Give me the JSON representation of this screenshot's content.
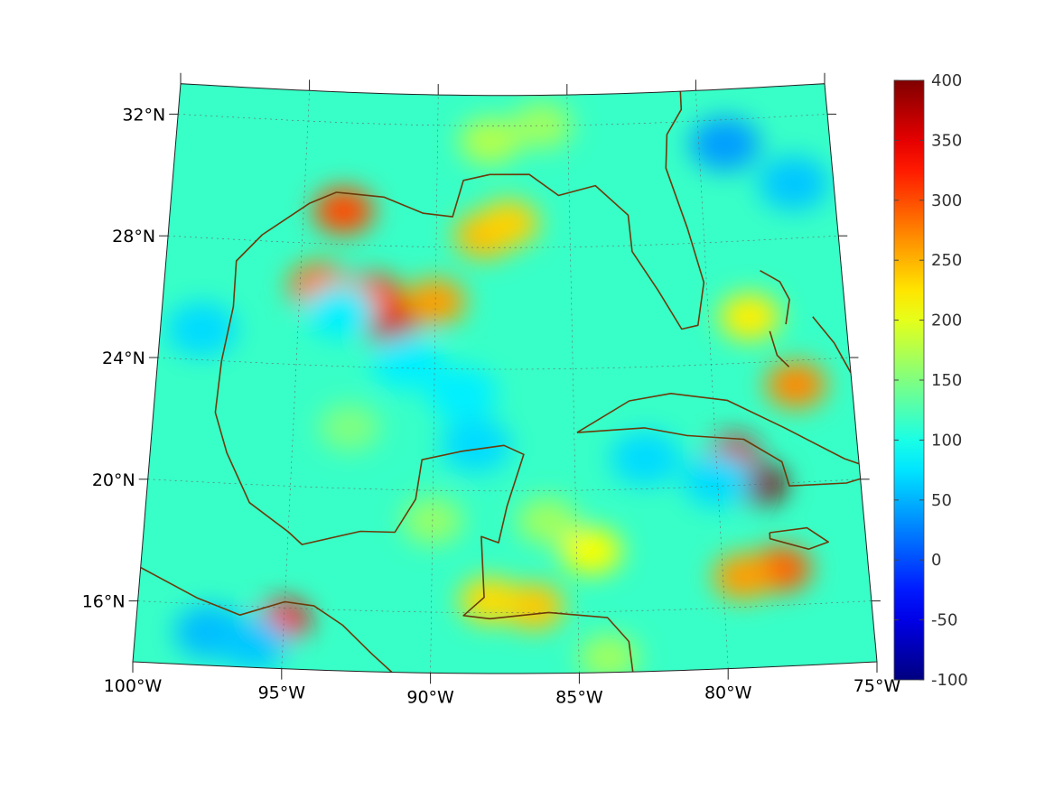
{
  "map": {
    "colormap": "jet",
    "base_value": 115,
    "lat_labels": [
      {
        "lat": 32,
        "text": "32°N"
      },
      {
        "lat": 28,
        "text": "28°N"
      },
      {
        "lat": 24,
        "text": "24°N"
      },
      {
        "lat": 20,
        "text": "20°N"
      },
      {
        "lat": 16,
        "text": "16°N"
      }
    ],
    "lon_labels": [
      {
        "lon": -100,
        "text": "100°W"
      },
      {
        "lon": -95,
        "text": "95°W"
      },
      {
        "lon": -90,
        "text": "90°W"
      },
      {
        "lon": -85,
        "text": "85°W"
      },
      {
        "lon": -80,
        "text": "80°W"
      },
      {
        "lon": -75,
        "text": "75°W"
      }
    ],
    "extent": {
      "lon": [
        -100,
        -75
      ],
      "lat": [
        14,
        33
      ]
    },
    "coast_color": "#6b3a0a",
    "features": [
      {
        "lon": -93.5,
        "lat": 29.1,
        "value": 300
      },
      {
        "lon": -94.3,
        "lat": 26.6,
        "value": 280
      },
      {
        "lon": -91.6,
        "lat": 25.4,
        "value": 370
      },
      {
        "lon": -92.3,
        "lat": 26.3,
        "value": 300
      },
      {
        "lon": -90,
        "lat": 26.2,
        "value": 260
      },
      {
        "lon": -88.2,
        "lat": 28.4,
        "value": 245
      },
      {
        "lon": -87.3,
        "lat": 28.8,
        "value": 235
      },
      {
        "lon": -78.5,
        "lat": 20.0,
        "value": 400
      },
      {
        "lon": -79.4,
        "lat": 21.0,
        "value": 360
      },
      {
        "lon": -78.0,
        "lat": 17.2,
        "value": 290
      },
      {
        "lon": -79.3,
        "lat": 17.0,
        "value": 260
      },
      {
        "lon": -77.0,
        "lat": 23.2,
        "value": 270
      },
      {
        "lon": -78.5,
        "lat": 25.5,
        "value": 220
      },
      {
        "lon": -86.5,
        "lat": 16.2,
        "value": 240
      },
      {
        "lon": -88,
        "lat": 16.4,
        "value": 230
      },
      {
        "lon": -95.0,
        "lat": 15.6,
        "value": 340
      },
      {
        "lon": -84.5,
        "lat": 18.0,
        "value": 210
      },
      {
        "lon": -79.0,
        "lat": 31.2,
        "value": 40
      },
      {
        "lon": -76.5,
        "lat": 29.8,
        "value": 60
      },
      {
        "lon": -98.5,
        "lat": 25.0,
        "value": 70
      },
      {
        "lon": -97.5,
        "lat": 15.1,
        "value": 55
      },
      {
        "lon": -96,
        "lat": 14.8,
        "value": 60
      },
      {
        "lon": -88.5,
        "lat": 21.5,
        "value": 70
      },
      {
        "lon": -89,
        "lat": 23.2,
        "value": 80
      },
      {
        "lon": -91,
        "lat": 24.2,
        "value": 80
      },
      {
        "lon": -93.5,
        "lat": 25.8,
        "value": 80
      },
      {
        "lon": -82.5,
        "lat": 21.0,
        "value": 70
      },
      {
        "lon": -80,
        "lat": 20.2,
        "value": 70
      },
      {
        "lon": -88,
        "lat": 31.5,
        "value": 175
      },
      {
        "lon": -86,
        "lat": 32,
        "value": 165
      },
      {
        "lon": -93,
        "lat": 22,
        "value": 150
      },
      {
        "lon": -90,
        "lat": 19,
        "value": 160
      },
      {
        "lon": -86,
        "lat": 19,
        "value": 165
      },
      {
        "lon": -84,
        "lat": 14.5,
        "value": 165
      }
    ]
  },
  "colorbar": {
    "min": -100,
    "max": 400,
    "tick_labels": [
      "400",
      "350",
      "300",
      "250",
      "200",
      "150",
      "100",
      "50",
      "0",
      "-50",
      "-100"
    ]
  }
}
